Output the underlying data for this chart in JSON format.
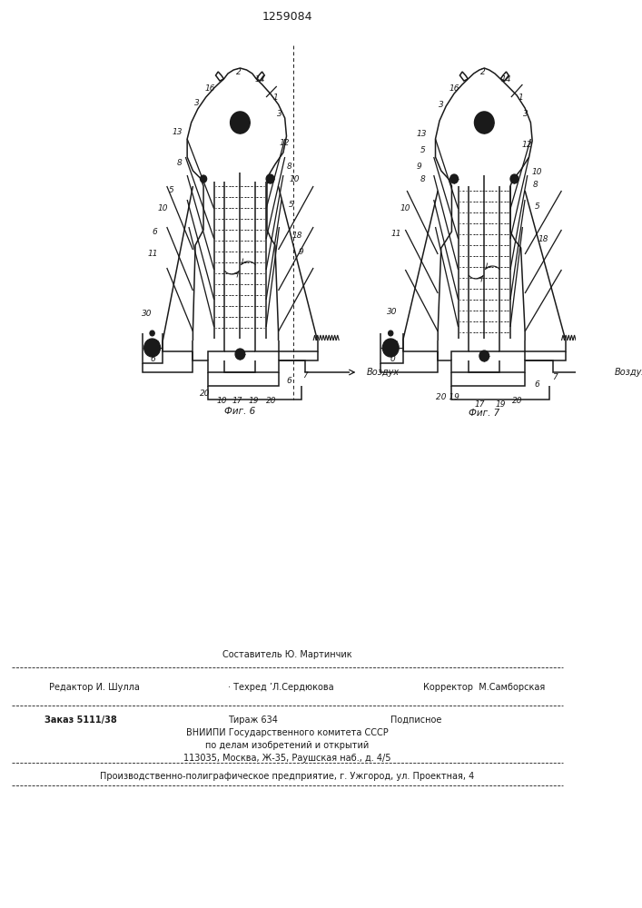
{
  "title": "1259084",
  "background_color": "#ffffff",
  "line_color": "#1a1a1a",
  "text_color": "#1a1a1a",
  "fig6_label": "Фиг. 6",
  "fig7_label": "Фиг. 7",
  "vozdux_label": "Воздух",
  "footer": {
    "line1_center": "Составитель Ю. Мартинчик",
    "line2_left": "Редактор И. Шулла",
    "line2_center": "· Техред ’Л.Сердюкова",
    "line2_right": "Корректор  М.Самборская",
    "line3_left": "Заказ 5111/38",
    "line3_center": "Тираж 634",
    "line3_right": "Подписное",
    "line4": "ВНИИПИ Государственного комитета СССР",
    "line5": "по делам изобретений и открытий",
    "line6": "113035, Москва, Ж-35, Раушская наб., д. 4/5",
    "line7": "Производственно-полиграфическое предприятие, г. Ужгород, ул. Проектная, 4"
  }
}
